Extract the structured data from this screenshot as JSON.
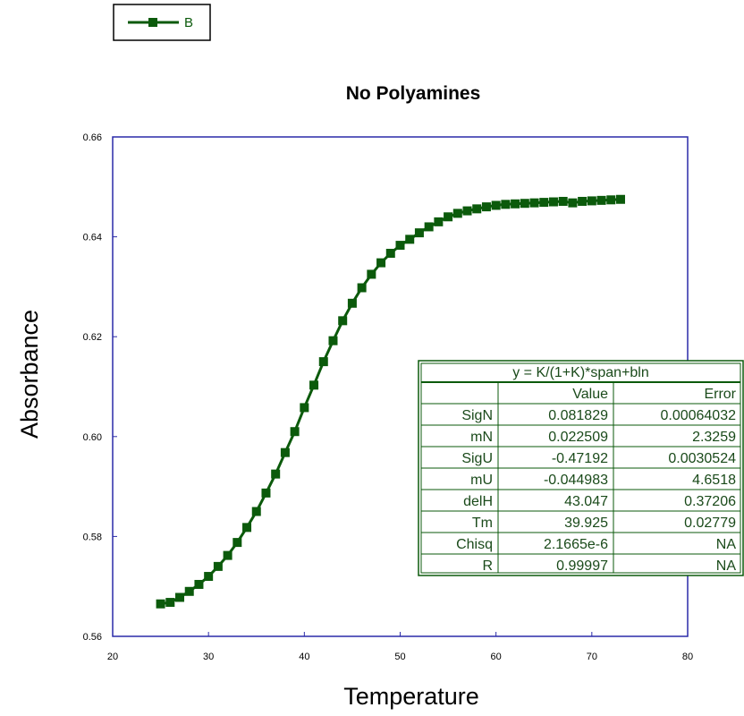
{
  "colors": {
    "series": "#0b5a0b",
    "plot_frame": "#2a2aa8",
    "fit_border": "#0b5a0b",
    "fit_text": "#1a4a1a"
  },
  "chart_data": {
    "type": "line",
    "title": "No Polyamines",
    "xlabel": "Temperature",
    "ylabel": "Absorbance",
    "xlim": [
      20,
      80
    ],
    "ylim": [
      0.56,
      0.66
    ],
    "x_ticks": [
      "20",
      "30",
      "40",
      "50",
      "60",
      "70",
      "80"
    ],
    "y_ticks": [
      "0.56",
      "0.58",
      "0.60",
      "0.62",
      "0.64",
      "0.66"
    ],
    "grid": false,
    "legend_position": "top-left",
    "series": [
      {
        "name": "B",
        "marker": "square",
        "x": [
          25,
          26,
          27,
          28,
          29,
          30,
          31,
          32,
          33,
          34,
          35,
          36,
          37,
          38,
          39,
          40,
          41,
          42,
          43,
          44,
          45,
          46,
          47,
          48,
          49,
          50,
          51,
          52,
          53,
          54,
          55,
          56,
          57,
          58,
          59,
          60,
          61,
          62,
          63,
          64,
          65,
          66,
          67,
          68,
          69,
          70,
          71,
          72,
          73
        ],
        "y": [
          0.5665,
          0.5668,
          0.5678,
          0.569,
          0.5704,
          0.572,
          0.574,
          0.5762,
          0.5788,
          0.5818,
          0.585,
          0.5887,
          0.5925,
          0.5968,
          0.601,
          0.6058,
          0.6103,
          0.615,
          0.6192,
          0.6232,
          0.6267,
          0.6298,
          0.6325,
          0.6348,
          0.6367,
          0.6383,
          0.6395,
          0.6408,
          0.642,
          0.643,
          0.644,
          0.6447,
          0.6452,
          0.6456,
          0.646,
          0.6463,
          0.6465,
          0.6466,
          0.6467,
          0.6468,
          0.6469,
          0.647,
          0.6471,
          0.6468,
          0.6471,
          0.6472,
          0.6473,
          0.6474,
          0.6475
        ]
      }
    ]
  },
  "fit_table": {
    "equation": "y = K/(1+K)*span+bln",
    "header": [
      "",
      "Value",
      "Error"
    ],
    "rows": [
      [
        "SigN",
        "0.081829",
        "0.00064032"
      ],
      [
        "mN",
        "0.022509",
        "2.3259"
      ],
      [
        "SigU",
        "-0.47192",
        "0.0030524"
      ],
      [
        "mU",
        "-0.044983",
        "4.6518"
      ],
      [
        "delH",
        "43.047",
        "0.37206"
      ],
      [
        "Tm",
        "39.925",
        "0.02779"
      ],
      [
        "Chisq",
        "2.1665e-6",
        "NA"
      ],
      [
        "R",
        "0.99997",
        "NA"
      ]
    ]
  }
}
